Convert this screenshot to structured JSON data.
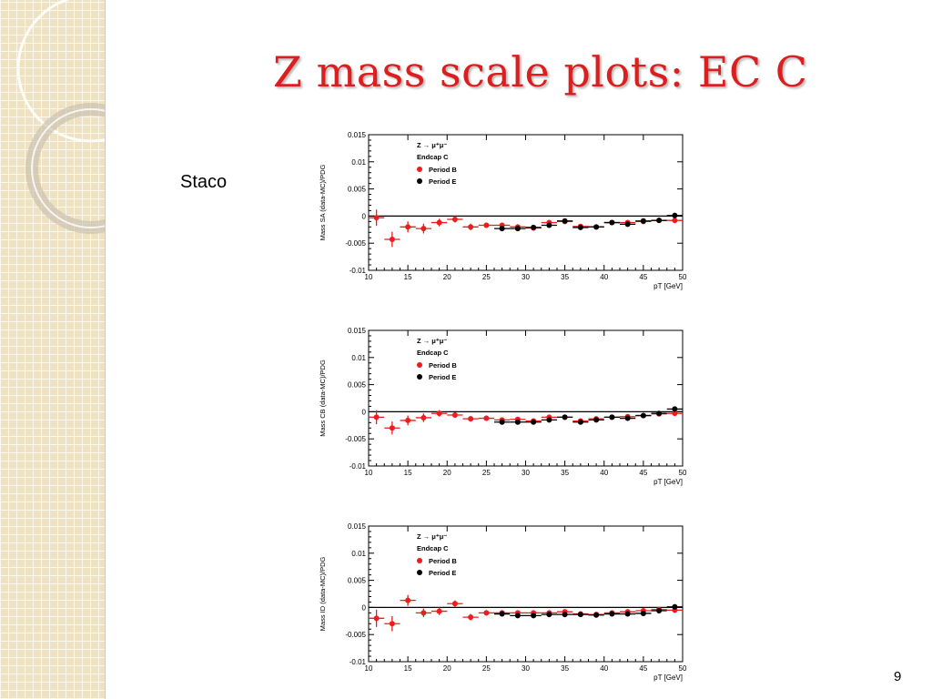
{
  "slide": {
    "title": "Z mass scale plots: EC C",
    "algorithm_label": "Staco",
    "page_number": "9"
  },
  "colors": {
    "title": "#dc1e1e",
    "period_b": "#ee1c1c",
    "period_e": "#000000",
    "sidebar_background": "#efe2c2"
  },
  "icons": [
    "grid-pattern-decoration",
    "ring-decoration"
  ],
  "chart_data": [
    {
      "type": "scatter",
      "ylabel": "Mass SA (data-MC)/PDG",
      "xlabel": "pT [GeV]",
      "xlim": [
        10,
        50
      ],
      "ylim": [
        -0.01,
        0.015
      ],
      "x_ticks": [
        "10",
        "15",
        "20",
        "25",
        "30",
        "35",
        "40",
        "45",
        "50"
      ],
      "y_ticks": [
        "-0.01",
        "-0.005",
        "0",
        "0.005",
        "0.01",
        "0.015"
      ],
      "reference_line": 0,
      "legend": {
        "process": "Z → μ⁺μ⁻",
        "region": "Endcap C",
        "placement": "top-left",
        "entries": [
          "Period B",
          "Period E"
        ]
      },
      "series": [
        {
          "name": "Period B",
          "color": "#ee1c1c",
          "x": [
            11,
            13,
            15,
            17,
            19,
            21,
            23,
            25,
            27,
            29,
            31,
            33,
            35,
            37,
            39,
            41,
            43,
            45,
            47,
            49
          ],
          "y": [
            -0.0003,
            -0.0043,
            -0.002,
            -0.0023,
            -0.0012,
            -0.0006,
            -0.002,
            -0.0017,
            -0.0017,
            -0.002,
            -0.0022,
            -0.0012,
            -0.001,
            -0.0019,
            -0.002,
            -0.0012,
            -0.0012,
            -0.001,
            -0.0008,
            -0.0008
          ],
          "yerr": [
            0.0015,
            0.0014,
            0.001,
            0.0009,
            0.0007,
            0.0006,
            0.0006,
            0.0005,
            0.0005,
            0.0005,
            0.0004,
            0.0004,
            0.0004,
            0.0004,
            0.0004,
            0.0004,
            0.0004,
            0.0004,
            0.0004,
            0.0005
          ]
        },
        {
          "name": "Period E",
          "color": "#000000",
          "x": [
            27,
            29,
            31,
            33,
            35,
            37,
            39,
            41,
            43,
            45,
            47,
            49
          ],
          "y": [
            -0.0023,
            -0.0023,
            -0.0021,
            -0.0017,
            -0.0009,
            -0.0021,
            -0.002,
            -0.0012,
            -0.0015,
            -0.0009,
            -0.0008,
            0.0001
          ],
          "yerr": [
            0.0004,
            0.0004,
            0.0004,
            0.0004,
            0.0004,
            0.0004,
            0.0004,
            0.0004,
            0.0004,
            0.0004,
            0.0004,
            0.0005
          ]
        }
      ]
    },
    {
      "type": "scatter",
      "ylabel": "Mass CB (data-MC)/PDG",
      "xlabel": "pT [GeV]",
      "xlim": [
        10,
        50
      ],
      "ylim": [
        -0.01,
        0.015
      ],
      "x_ticks": [
        "10",
        "15",
        "20",
        "25",
        "30",
        "35",
        "40",
        "45",
        "50"
      ],
      "y_ticks": [
        "-0.01",
        "-0.005",
        "0",
        "0.005",
        "0.01",
        "0.015"
      ],
      "reference_line": 0,
      "legend": {
        "process": "Z → μ⁺μ⁻",
        "region": "Endcap C",
        "placement": "top-left",
        "entries": [
          "Period B",
          "Period E"
        ]
      },
      "series": [
        {
          "name": "Period B",
          "color": "#ee1c1c",
          "x": [
            11,
            13,
            15,
            17,
            19,
            21,
            23,
            25,
            27,
            29,
            31,
            33,
            35,
            37,
            39,
            41,
            43,
            45,
            47,
            49
          ],
          "y": [
            -0.001,
            -0.003,
            -0.0016,
            -0.0011,
            -0.0003,
            -0.0006,
            -0.0013,
            -0.0012,
            -0.0015,
            -0.0014,
            -0.0017,
            -0.001,
            -0.001,
            -0.0017,
            -0.0013,
            -0.001,
            -0.0009,
            -0.0007,
            -0.0004,
            -0.0003
          ],
          "yerr": [
            0.0013,
            0.0012,
            0.0009,
            0.0008,
            0.0006,
            0.0005,
            0.0005,
            0.0005,
            0.0004,
            0.0004,
            0.0004,
            0.0004,
            0.0004,
            0.0004,
            0.0004,
            0.0004,
            0.0004,
            0.0004,
            0.0004,
            0.0005
          ]
        },
        {
          "name": "Period E",
          "color": "#000000",
          "x": [
            27,
            29,
            31,
            33,
            35,
            37,
            39,
            41,
            43,
            45,
            47,
            49
          ],
          "y": [
            -0.0019,
            -0.0019,
            -0.0019,
            -0.0015,
            -0.001,
            -0.0019,
            -0.0015,
            -0.001,
            -0.0012,
            -0.0007,
            -0.0003,
            0.0005
          ],
          "yerr": [
            0.0004,
            0.0004,
            0.0004,
            0.0004,
            0.0004,
            0.0004,
            0.0004,
            0.0004,
            0.0004,
            0.0004,
            0.0004,
            0.0005
          ]
        }
      ]
    },
    {
      "type": "scatter",
      "ylabel": "Mass ID (data-MC)/PDG",
      "xlabel": "pT [GeV]",
      "xlim": [
        10,
        50
      ],
      "ylim": [
        -0.01,
        0.015
      ],
      "x_ticks": [
        "10",
        "15",
        "20",
        "25",
        "30",
        "35",
        "40",
        "45",
        "50"
      ],
      "y_ticks": [
        "-0.01",
        "-0.005",
        "0",
        "0.005",
        "0.01",
        "0.015"
      ],
      "reference_line": 0,
      "legend": {
        "process": "Z → μ⁺μ⁻",
        "region": "Endcap C",
        "placement": "top-left",
        "entries": [
          "Period B",
          "Period E"
        ]
      },
      "series": [
        {
          "name": "Period B",
          "color": "#ee1c1c",
          "x": [
            11,
            13,
            15,
            17,
            19,
            21,
            23,
            25,
            27,
            29,
            31,
            33,
            35,
            37,
            39,
            41,
            43,
            45,
            47,
            49
          ],
          "y": [
            -0.002,
            -0.003,
            0.0013,
            -0.001,
            -0.0007,
            0.0007,
            -0.0018,
            -0.001,
            -0.001,
            -0.001,
            -0.001,
            -0.001,
            -0.0008,
            -0.0012,
            -0.0013,
            -0.001,
            -0.0008,
            -0.0006,
            -0.0004,
            -0.0005
          ],
          "yerr": [
            0.0016,
            0.0014,
            0.001,
            0.0008,
            0.0007,
            0.0006,
            0.0006,
            0.0005,
            0.0005,
            0.0004,
            0.0004,
            0.0004,
            0.0004,
            0.0004,
            0.0004,
            0.0004,
            0.0004,
            0.0004,
            0.0004,
            0.0005
          ]
        },
        {
          "name": "Period E",
          "color": "#000000",
          "x": [
            27,
            29,
            31,
            33,
            35,
            37,
            39,
            41,
            43,
            45,
            47,
            49
          ],
          "y": [
            -0.0012,
            -0.0015,
            -0.0015,
            -0.0013,
            -0.0013,
            -0.0013,
            -0.0014,
            -0.0012,
            -0.0012,
            -0.0011,
            -0.0006,
            0.0001
          ],
          "yerr": [
            0.0004,
            0.0004,
            0.0004,
            0.0004,
            0.0004,
            0.0004,
            0.0004,
            0.0004,
            0.0004,
            0.0004,
            0.0004,
            0.0005
          ]
        }
      ]
    }
  ]
}
